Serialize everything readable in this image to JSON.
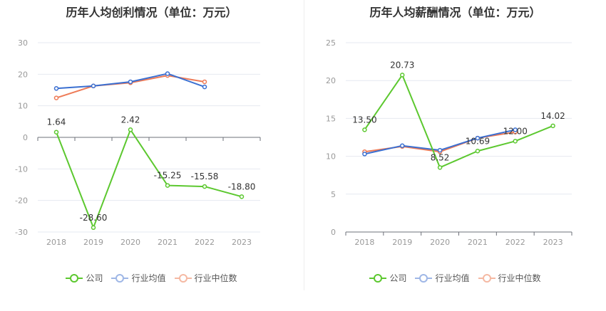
{
  "chart_data": [
    {
      "type": "line",
      "title": "历年人均创利情况（单位：万元）",
      "categories": [
        "2018",
        "2019",
        "2020",
        "2021",
        "2022",
        "2023"
      ],
      "ylim": [
        -30,
        30
      ],
      "yticks": [
        30,
        20,
        10,
        0,
        -10,
        -20,
        -30
      ],
      "series": [
        {
          "name": "公司",
          "color": "#5cc82f",
          "values": [
            1.64,
            -28.6,
            2.42,
            -15.25,
            -15.58,
            -18.8
          ],
          "labels": [
            "1.64",
            "-28.60",
            "2.42",
            "-15.25",
            "-15.58",
            "-18.80"
          ]
        },
        {
          "name": "行业均值",
          "color": "#3a6fd1",
          "values": [
            15.5,
            16.3,
            17.6,
            20.2,
            16.0,
            null
          ]
        },
        {
          "name": "行业中位数",
          "color": "#ee7b57",
          "values": [
            12.5,
            16.3,
            17.3,
            19.6,
            17.6,
            null
          ]
        }
      ],
      "legend_position": "bottom"
    },
    {
      "type": "line",
      "title": "历年人均薪酬情况（单位：万元）",
      "categories": [
        "2018",
        "2019",
        "2020",
        "2021",
        "2022",
        "2023"
      ],
      "ylim": [
        0,
        25
      ],
      "yticks": [
        25,
        20,
        15,
        10,
        5,
        0
      ],
      "series": [
        {
          "name": "公司",
          "color": "#5cc82f",
          "values": [
            13.5,
            20.73,
            8.52,
            10.69,
            12.0,
            14.02
          ],
          "labels": [
            "13.50",
            "20.73",
            "8.52",
            "10.69",
            "12.00",
            "14.02"
          ]
        },
        {
          "name": "行业均值",
          "color": "#3a6fd1",
          "values": [
            10.3,
            11.4,
            10.8,
            12.4,
            13.5,
            null
          ]
        },
        {
          "name": "行业中位数",
          "color": "#ee7b57",
          "values": [
            10.6,
            11.3,
            10.6,
            12.4,
            13.2,
            null
          ]
        }
      ],
      "legend_position": "bottom"
    }
  ],
  "legend": {
    "items": [
      {
        "label": "公司",
        "color": "#5cc82f",
        "light": "#5cc82f"
      },
      {
        "label": "行业均值",
        "color": "#3a6fd1",
        "light": "#9fb7e6"
      },
      {
        "label": "行业中位数",
        "color": "#ee7b57",
        "light": "#f5b9a3"
      }
    ]
  }
}
